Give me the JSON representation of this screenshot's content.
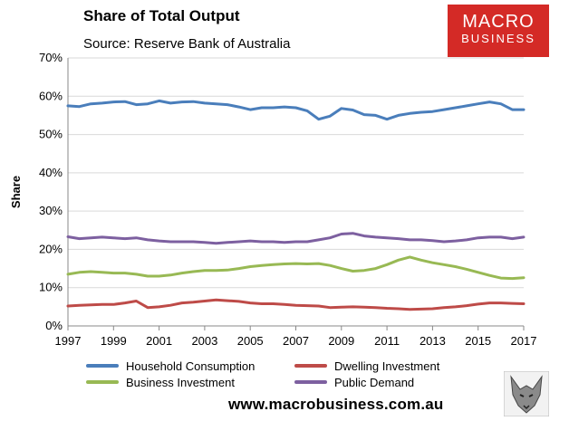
{
  "title": "Share of Total Output",
  "source": "Source: Reserve Bank of Australia",
  "logo": {
    "line1": "MACRO",
    "line2": "BUSINESS"
  },
  "website": "www.macrobusiness.com.au",
  "colors": {
    "household": "#4a7ebb",
    "dwelling": "#be4b48",
    "business": "#98b954",
    "public": "#7d60a0",
    "grid": "#d9d9d9",
    "logo": "#d42a26"
  },
  "chart_data": {
    "type": "line",
    "title": "Share of Total Output",
    "xlabel": "",
    "ylabel": "Share",
    "xlim": [
      1997,
      2017
    ],
    "ylim": [
      0,
      70
    ],
    "x_ticks": [
      "1997",
      "1999",
      "2001",
      "2003",
      "2005",
      "2007",
      "2009",
      "2011",
      "2013",
      "2015",
      "2017"
    ],
    "y_ticks": [
      "0%",
      "10%",
      "20%",
      "30%",
      "40%",
      "50%",
      "60%",
      "70%"
    ],
    "grid": true,
    "legend_position": "bottom",
    "series": [
      {
        "name": "Household Consumption",
        "color_key": "household",
        "points": [
          [
            1997.0,
            57.5
          ],
          [
            1997.5,
            57.3
          ],
          [
            1998.0,
            58.0
          ],
          [
            1998.5,
            58.2
          ],
          [
            1999.0,
            58.5
          ],
          [
            1999.5,
            58.6
          ],
          [
            2000.0,
            57.8
          ],
          [
            2000.5,
            58.0
          ],
          [
            2001.0,
            58.8
          ],
          [
            2001.5,
            58.2
          ],
          [
            2002.0,
            58.5
          ],
          [
            2002.5,
            58.6
          ],
          [
            2003.0,
            58.2
          ],
          [
            2003.5,
            58.0
          ],
          [
            2004.0,
            57.8
          ],
          [
            2004.5,
            57.2
          ],
          [
            2005.0,
            56.5
          ],
          [
            2005.5,
            57.0
          ],
          [
            2006.0,
            57.0
          ],
          [
            2006.5,
            57.2
          ],
          [
            2007.0,
            57.0
          ],
          [
            2007.5,
            56.2
          ],
          [
            2008.0,
            54.0
          ],
          [
            2008.5,
            54.8
          ],
          [
            2009.0,
            56.8
          ],
          [
            2009.5,
            56.4
          ],
          [
            2010.0,
            55.2
          ],
          [
            2010.5,
            55.0
          ],
          [
            2011.0,
            54.0
          ],
          [
            2011.5,
            55.0
          ],
          [
            2012.0,
            55.5
          ],
          [
            2012.5,
            55.8
          ],
          [
            2013.0,
            56.0
          ],
          [
            2013.5,
            56.5
          ],
          [
            2014.0,
            57.0
          ],
          [
            2014.5,
            57.5
          ],
          [
            2015.0,
            58.0
          ],
          [
            2015.5,
            58.5
          ],
          [
            2016.0,
            58.0
          ],
          [
            2016.5,
            56.5
          ],
          [
            2017.0,
            56.5
          ]
        ]
      },
      {
        "name": "Dwelling Investment",
        "color_key": "dwelling",
        "points": [
          [
            1997.0,
            5.2
          ],
          [
            1997.5,
            5.4
          ],
          [
            1998.0,
            5.5
          ],
          [
            1998.5,
            5.6
          ],
          [
            1999.0,
            5.6
          ],
          [
            1999.5,
            6.0
          ],
          [
            2000.0,
            6.5
          ],
          [
            2000.5,
            4.8
          ],
          [
            2001.0,
            5.0
          ],
          [
            2001.5,
            5.4
          ],
          [
            2002.0,
            6.0
          ],
          [
            2002.5,
            6.2
          ],
          [
            2003.0,
            6.5
          ],
          [
            2003.5,
            6.8
          ],
          [
            2004.0,
            6.6
          ],
          [
            2004.5,
            6.4
          ],
          [
            2005.0,
            6.0
          ],
          [
            2005.5,
            5.8
          ],
          [
            2006.0,
            5.8
          ],
          [
            2006.5,
            5.6
          ],
          [
            2007.0,
            5.4
          ],
          [
            2007.5,
            5.3
          ],
          [
            2008.0,
            5.2
          ],
          [
            2008.5,
            4.8
          ],
          [
            2009.0,
            4.9
          ],
          [
            2009.5,
            5.0
          ],
          [
            2010.0,
            4.9
          ],
          [
            2010.5,
            4.8
          ],
          [
            2011.0,
            4.6
          ],
          [
            2011.5,
            4.5
          ],
          [
            2012.0,
            4.3
          ],
          [
            2012.5,
            4.4
          ],
          [
            2013.0,
            4.5
          ],
          [
            2013.5,
            4.8
          ],
          [
            2014.0,
            5.0
          ],
          [
            2014.5,
            5.3
          ],
          [
            2015.0,
            5.7
          ],
          [
            2015.5,
            6.0
          ],
          [
            2016.0,
            6.0
          ],
          [
            2016.5,
            5.9
          ],
          [
            2017.0,
            5.8
          ]
        ]
      },
      {
        "name": "Business Investment",
        "color_key": "business",
        "points": [
          [
            1997.0,
            13.5
          ],
          [
            1997.5,
            14.0
          ],
          [
            1998.0,
            14.2
          ],
          [
            1998.5,
            14.0
          ],
          [
            1999.0,
            13.8
          ],
          [
            1999.5,
            13.8
          ],
          [
            2000.0,
            13.5
          ],
          [
            2000.5,
            13.0
          ],
          [
            2001.0,
            13.0
          ],
          [
            2001.5,
            13.3
          ],
          [
            2002.0,
            13.8
          ],
          [
            2002.5,
            14.2
          ],
          [
            2003.0,
            14.5
          ],
          [
            2003.5,
            14.5
          ],
          [
            2004.0,
            14.6
          ],
          [
            2004.5,
            15.0
          ],
          [
            2005.0,
            15.5
          ],
          [
            2005.5,
            15.8
          ],
          [
            2006.0,
            16.0
          ],
          [
            2006.5,
            16.2
          ],
          [
            2007.0,
            16.3
          ],
          [
            2007.5,
            16.2
          ],
          [
            2008.0,
            16.3
          ],
          [
            2008.5,
            15.8
          ],
          [
            2009.0,
            15.0
          ],
          [
            2009.5,
            14.3
          ],
          [
            2010.0,
            14.5
          ],
          [
            2010.5,
            15.0
          ],
          [
            2011.0,
            16.0
          ],
          [
            2011.5,
            17.2
          ],
          [
            2012.0,
            18.0
          ],
          [
            2012.5,
            17.2
          ],
          [
            2013.0,
            16.5
          ],
          [
            2013.5,
            16.0
          ],
          [
            2014.0,
            15.5
          ],
          [
            2014.5,
            14.8
          ],
          [
            2015.0,
            14.0
          ],
          [
            2015.5,
            13.2
          ],
          [
            2016.0,
            12.5
          ],
          [
            2016.5,
            12.4
          ],
          [
            2017.0,
            12.6
          ]
        ]
      },
      {
        "name": "Public Demand",
        "color_key": "public",
        "points": [
          [
            1997.0,
            23.3
          ],
          [
            1997.5,
            22.8
          ],
          [
            1998.0,
            23.0
          ],
          [
            1998.5,
            23.2
          ],
          [
            1999.0,
            23.0
          ],
          [
            1999.5,
            22.8
          ],
          [
            2000.0,
            23.0
          ],
          [
            2000.5,
            22.5
          ],
          [
            2001.0,
            22.2
          ],
          [
            2001.5,
            22.0
          ],
          [
            2002.0,
            22.0
          ],
          [
            2002.5,
            22.0
          ],
          [
            2003.0,
            21.8
          ],
          [
            2003.5,
            21.6
          ],
          [
            2004.0,
            21.8
          ],
          [
            2004.5,
            22.0
          ],
          [
            2005.0,
            22.2
          ],
          [
            2005.5,
            22.0
          ],
          [
            2006.0,
            22.0
          ],
          [
            2006.5,
            21.8
          ],
          [
            2007.0,
            22.0
          ],
          [
            2007.5,
            22.0
          ],
          [
            2008.0,
            22.5
          ],
          [
            2008.5,
            23.0
          ],
          [
            2009.0,
            24.0
          ],
          [
            2009.5,
            24.2
          ],
          [
            2010.0,
            23.5
          ],
          [
            2010.5,
            23.2
          ],
          [
            2011.0,
            23.0
          ],
          [
            2011.5,
            22.8
          ],
          [
            2012.0,
            22.5
          ],
          [
            2012.5,
            22.5
          ],
          [
            2013.0,
            22.3
          ],
          [
            2013.5,
            22.0
          ],
          [
            2014.0,
            22.2
          ],
          [
            2014.5,
            22.5
          ],
          [
            2015.0,
            23.0
          ],
          [
            2015.5,
            23.2
          ],
          [
            2016.0,
            23.2
          ],
          [
            2016.5,
            22.8
          ],
          [
            2017.0,
            23.2
          ]
        ]
      }
    ]
  }
}
